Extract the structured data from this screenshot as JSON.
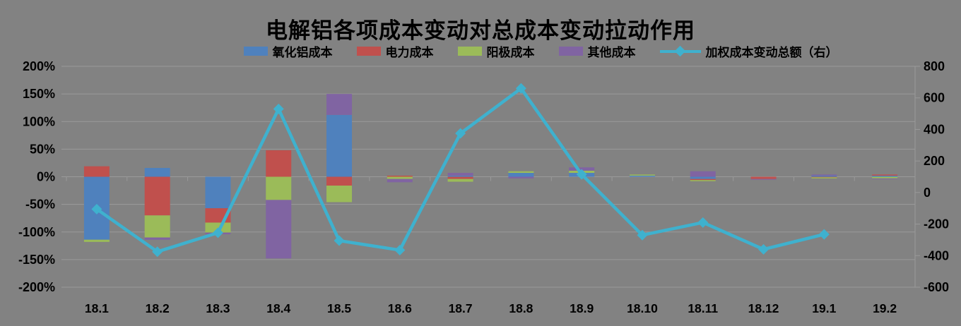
{
  "title": "电解铝各项成本变动对总成本变动拉动作用",
  "colors": {
    "background": "#828282",
    "grid": "#9a9a9a",
    "text": "#000000",
    "alumina": "#4f81bd",
    "electricity": "#c0504d",
    "anode": "#9bbb59",
    "other": "#8064a2",
    "line": "#3fb1ce"
  },
  "chart_data": {
    "type": "combo: stacked-bar + line",
    "title": "电解铝各项成本变动对总成本变动拉动作用",
    "grid": true,
    "legend_position": "top",
    "categories": [
      "18.1",
      "18.2",
      "18.3",
      "18.4",
      "18.5",
      "18.6",
      "18.7",
      "18.8",
      "18.9",
      "18.10",
      "18.11",
      "18.12",
      "19.1",
      "19.2"
    ],
    "bar_series": [
      {
        "name": "氧化铝成本",
        "color": "#4f81bd",
        "axis": "left",
        "unit": "%",
        "values": [
          -114,
          16,
          -57,
          0,
          112,
          0,
          2,
          7,
          7,
          2,
          -4,
          0,
          2,
          2
        ]
      },
      {
        "name": "电力成本",
        "color": "#c0504d",
        "axis": "left",
        "unit": "%",
        "values": [
          19,
          -70,
          -26,
          48,
          -16,
          2,
          -4,
          0,
          0,
          0,
          -2,
          -4,
          -1,
          2
        ]
      },
      {
        "name": "阳极成本",
        "color": "#9bbb59",
        "axis": "left",
        "unit": "%",
        "values": [
          -4,
          -40,
          -18,
          -42,
          -30,
          -4,
          -5,
          3,
          4,
          2,
          -2,
          0,
          -2,
          -3
        ]
      },
      {
        "name": "其他成本",
        "color": "#8064a2",
        "axis": "left",
        "unit": "%",
        "values": [
          0,
          -4,
          -3,
          -106,
          38,
          -6,
          5,
          -3,
          6,
          0,
          10,
          -1,
          2,
          -1
        ]
      }
    ],
    "line_series": {
      "name": "加权成本变动总额（右）",
      "color": "#3fb1ce",
      "axis": "right",
      "marker": "diamond",
      "values": [
        -105,
        -375,
        -255,
        530,
        -305,
        -365,
        375,
        660,
        115,
        -270,
        -190,
        -360,
        -265,
        null
      ]
    },
    "axes": {
      "left": {
        "min": -200,
        "max": 200,
        "step": 50,
        "format": "percent",
        "ticks": [
          "200%",
          "150%",
          "100%",
          "50%",
          "0%",
          "-50%",
          "-100%",
          "-150%",
          "-200%"
        ]
      },
      "right": {
        "min": -600,
        "max": 800,
        "step": 200,
        "ticks": [
          "800",
          "600",
          "400",
          "200",
          "0",
          "-200",
          "-400",
          "-600"
        ]
      }
    }
  }
}
